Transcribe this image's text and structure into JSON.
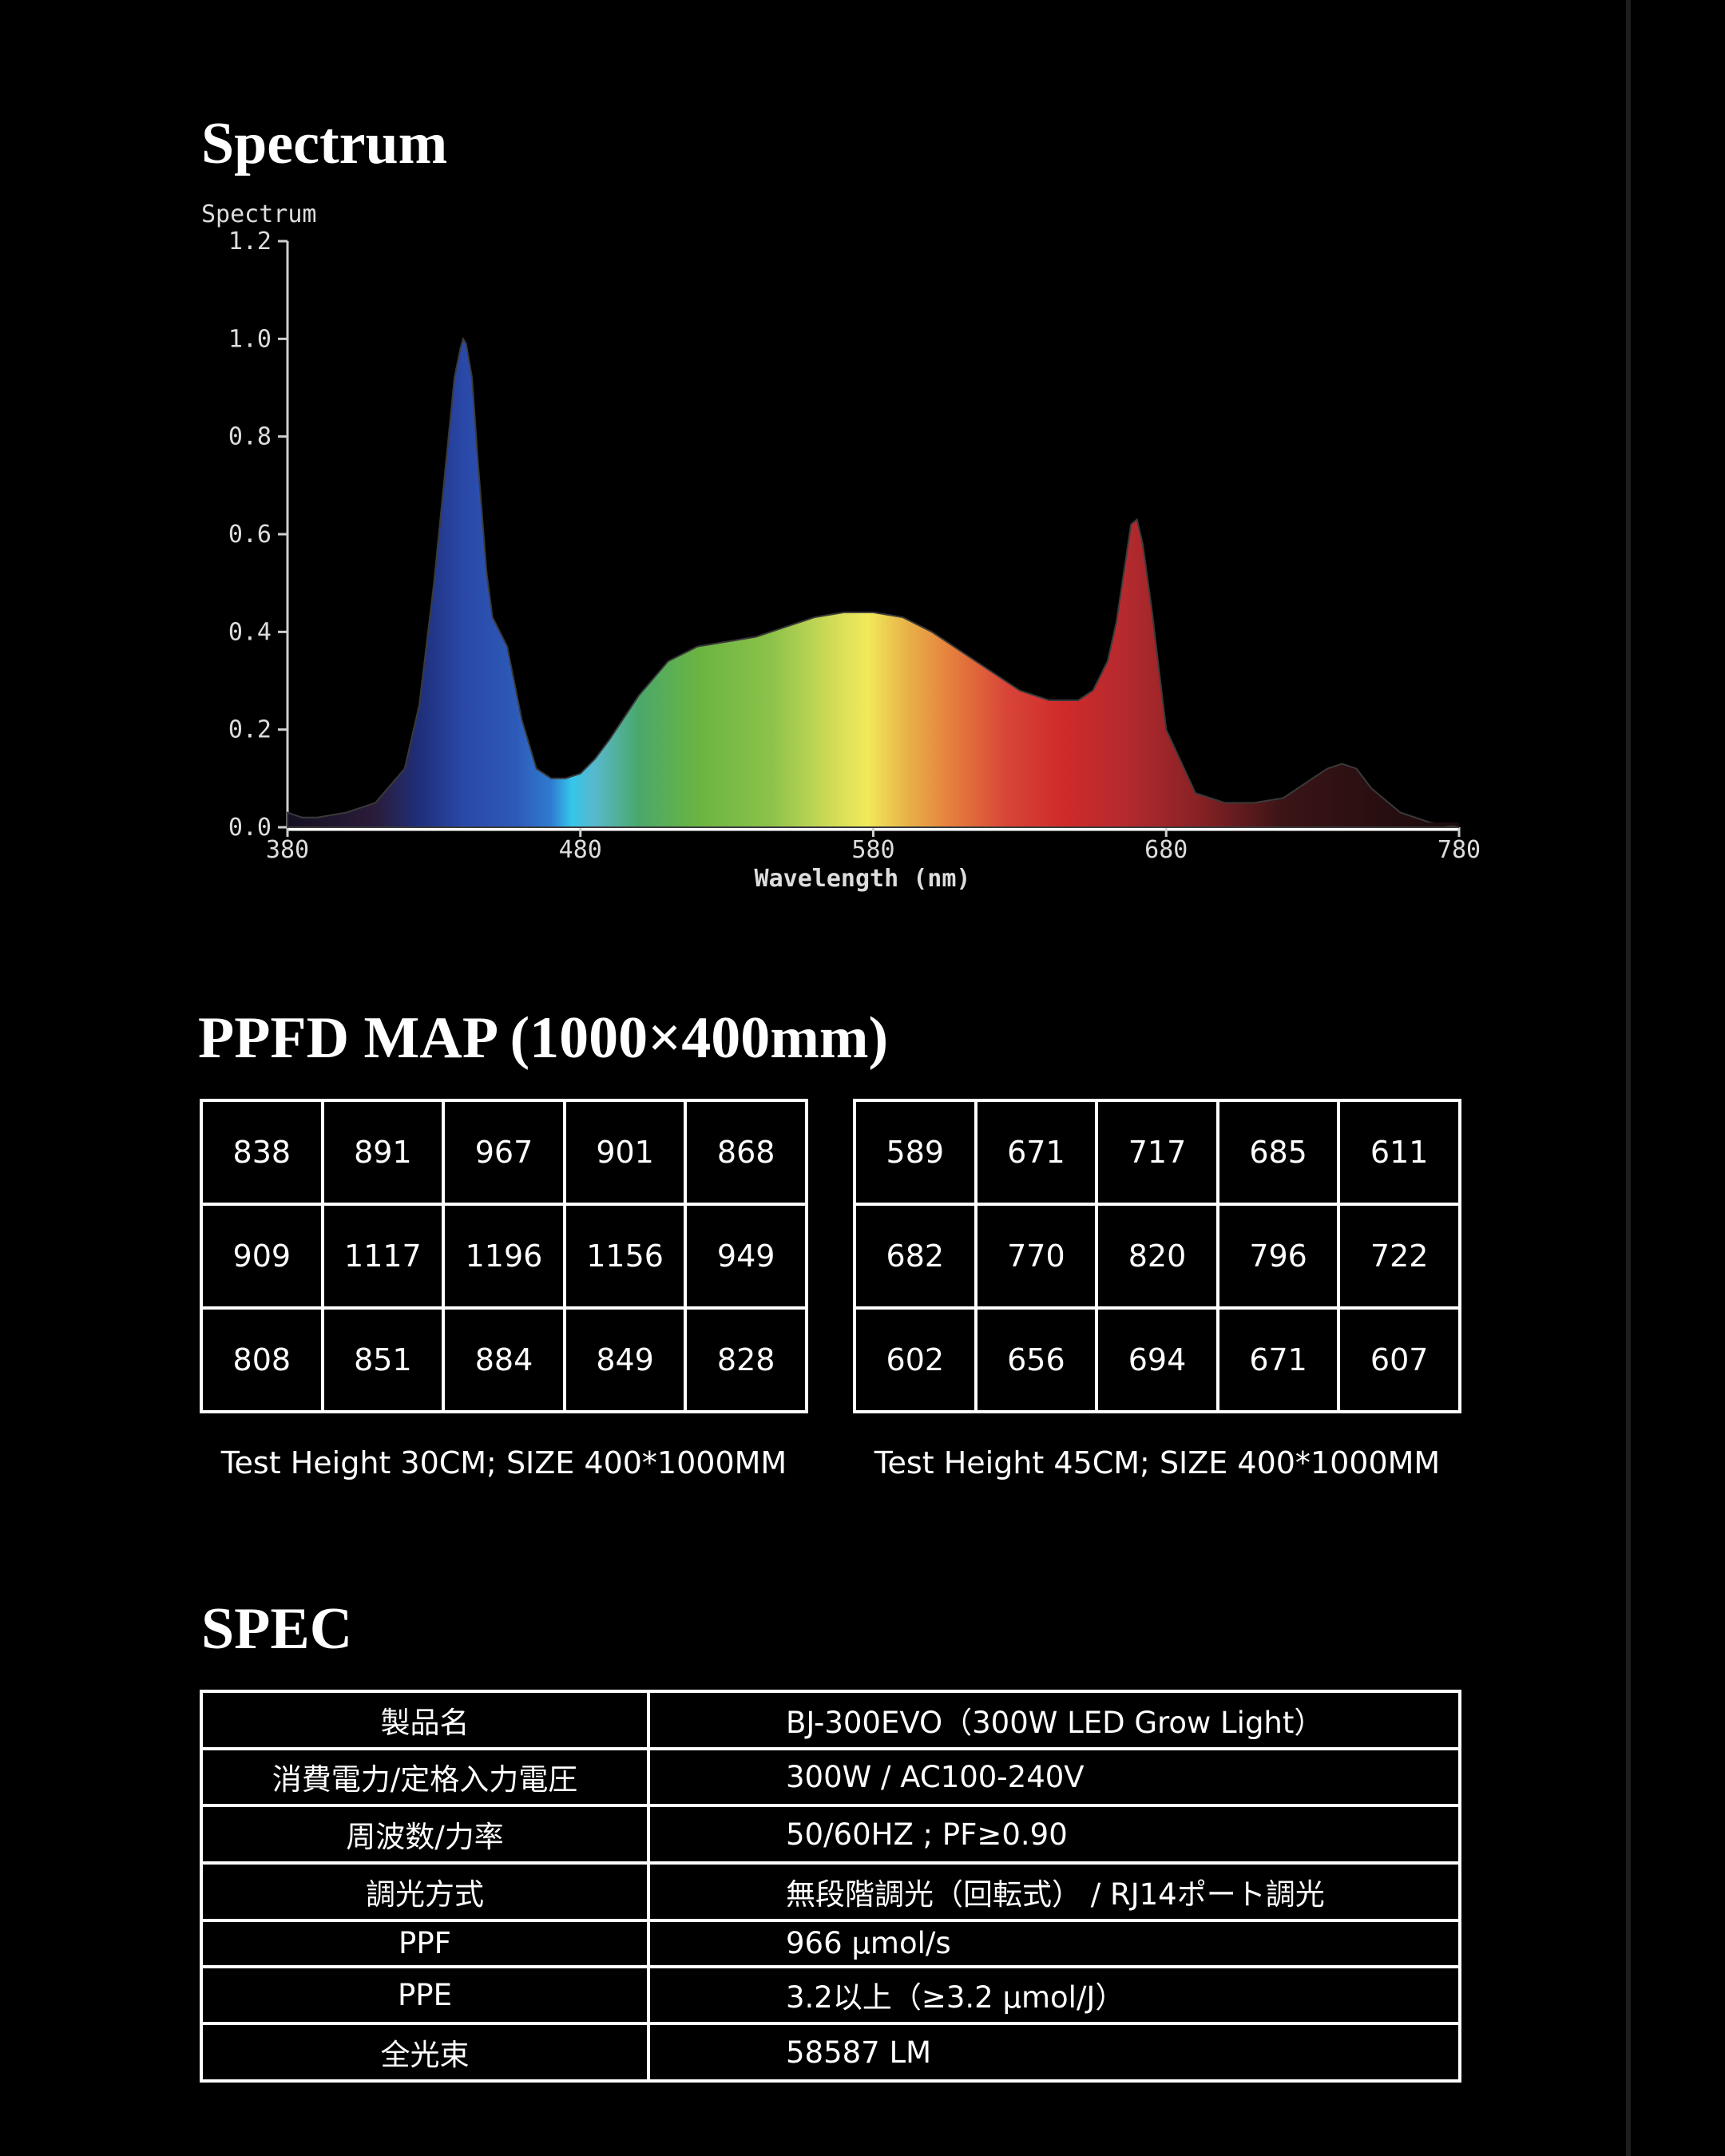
{
  "spectrum_section": {
    "title": "Spectrum"
  },
  "chart_data": {
    "type": "area",
    "title": "Spectrum",
    "xlabel": "Wavelength (nm)",
    "ylabel": "",
    "xlim": [
      380,
      780
    ],
    "ylim": [
      0,
      1.2
    ],
    "x_ticks": [
      380,
      480,
      580,
      680,
      780
    ],
    "y_ticks": [
      "0.0",
      "0.2",
      "0.4",
      "0.6",
      "0.8",
      "1.0",
      "1.2"
    ],
    "grid": false,
    "fill": "visible-spectrum gradient",
    "series": [
      {
        "x": [
          380,
          385,
          390,
          400,
          410,
          420,
          425,
          430,
          435,
          437,
          439,
          440,
          441,
          443,
          445,
          448,
          450,
          455,
          460,
          465,
          470,
          475,
          480,
          485,
          490,
          500,
          510,
          520,
          530,
          540,
          550,
          560,
          570,
          580,
          590,
          600,
          610,
          620,
          630,
          640,
          650,
          655,
          660,
          663,
          666,
          668,
          670,
          672,
          675,
          680,
          690,
          700,
          710,
          720,
          725,
          730,
          735,
          740,
          745,
          750,
          760,
          770,
          780
        ],
        "y": [
          0.03,
          0.02,
          0.02,
          0.03,
          0.05,
          0.12,
          0.25,
          0.5,
          0.8,
          0.92,
          0.98,
          1.0,
          0.99,
          0.92,
          0.75,
          0.52,
          0.43,
          0.37,
          0.22,
          0.12,
          0.1,
          0.1,
          0.11,
          0.14,
          0.18,
          0.27,
          0.34,
          0.37,
          0.38,
          0.39,
          0.41,
          0.43,
          0.44,
          0.44,
          0.43,
          0.4,
          0.36,
          0.32,
          0.28,
          0.26,
          0.26,
          0.28,
          0.34,
          0.42,
          0.54,
          0.62,
          0.63,
          0.58,
          0.45,
          0.2,
          0.07,
          0.05,
          0.05,
          0.06,
          0.08,
          0.1,
          0.12,
          0.13,
          0.12,
          0.08,
          0.03,
          0.01,
          0.0
        ]
      }
    ]
  },
  "ppfd": {
    "title": "PPFD MAP (1000×400mm)",
    "grid_30": [
      [
        "838",
        "891",
        "967",
        "901",
        "868"
      ],
      [
        "909",
        "1117",
        "1196",
        "1156",
        "949"
      ],
      [
        "808",
        "851",
        "884",
        "849",
        "828"
      ]
    ],
    "grid_45": [
      [
        "589",
        "671",
        "717",
        "685",
        "611"
      ],
      [
        "682",
        "770",
        "820",
        "796",
        "722"
      ],
      [
        "602",
        "656",
        "694",
        "671",
        "607"
      ]
    ],
    "caption_30": "Test Height 30CM; SIZE 400*1000MM",
    "caption_45": "Test Height 45CM; SIZE 400*1000MM"
  },
  "spec": {
    "title": "SPEC",
    "rows": [
      {
        "key": "製品名",
        "value": "BJ-300EVO（300W LED Grow Light）"
      },
      {
        "key": "消費電力/定格入力電圧",
        "value": "300W / AC100-240V"
      },
      {
        "key": "周波数/力率",
        "value": "50/60HZ ; PF≥0.90"
      },
      {
        "key": "調光方式",
        "value": "無段階調光（回転式） / RJ14ポート調光"
      },
      {
        "key": "PPF",
        "value": "966 µmol/s"
      },
      {
        "key": "PPE",
        "value": "3.2以上（≥3.2 µmol/J）"
      },
      {
        "key": "全光束",
        "value": "58587 LM"
      }
    ]
  }
}
